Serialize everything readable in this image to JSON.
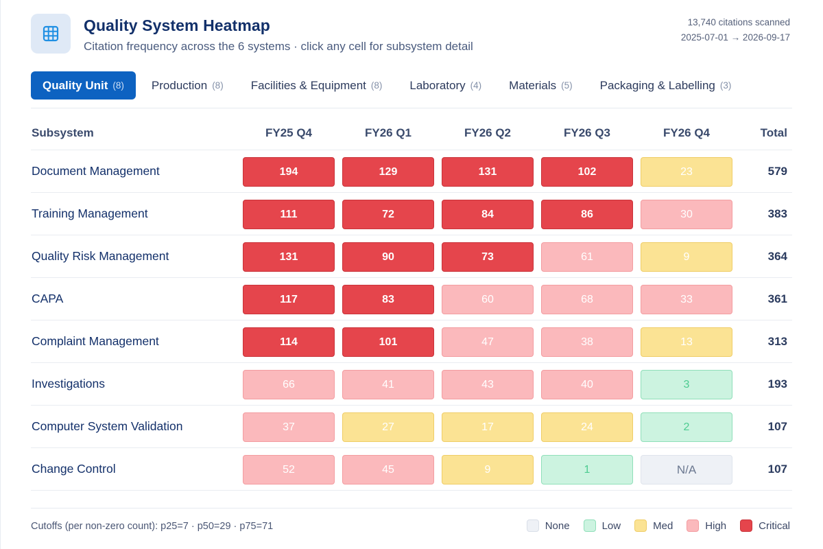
{
  "header": {
    "icon": "grid-icon",
    "title": "Quality System Heatmap",
    "subtitle": "Citation frequency across the 6 systems · click any cell for subsystem detail",
    "citations": "13,740 citations scanned",
    "date_range": "2025-07-01 → 2026-09-17"
  },
  "tabs": [
    {
      "label": "Quality Unit",
      "count": "(8)",
      "active": true
    },
    {
      "label": "Production",
      "count": "(8)",
      "active": false
    },
    {
      "label": "Facilities & Equipment",
      "count": "(8)",
      "active": false
    },
    {
      "label": "Laboratory",
      "count": "(4)",
      "active": false
    },
    {
      "label": "Materials",
      "count": "(5)",
      "active": false
    },
    {
      "label": "Packaging & Labelling",
      "count": "(3)",
      "active": false
    }
  ],
  "table": {
    "subsystem_header": "Subsystem",
    "columns": [
      "FY25 Q4",
      "FY26 Q1",
      "FY26 Q2",
      "FY26 Q3",
      "FY26 Q4"
    ],
    "total_header": "Total",
    "rows": [
      {
        "name": "Document Management",
        "cells": [
          {
            "v": "194",
            "lvl": "critical"
          },
          {
            "v": "129",
            "lvl": "critical"
          },
          {
            "v": "131",
            "lvl": "critical"
          },
          {
            "v": "102",
            "lvl": "critical"
          },
          {
            "v": "23",
            "lvl": "med"
          }
        ],
        "total": "579"
      },
      {
        "name": "Training Management",
        "cells": [
          {
            "v": "111",
            "lvl": "critical"
          },
          {
            "v": "72",
            "lvl": "critical"
          },
          {
            "v": "84",
            "lvl": "critical"
          },
          {
            "v": "86",
            "lvl": "critical"
          },
          {
            "v": "30",
            "lvl": "high"
          }
        ],
        "total": "383"
      },
      {
        "name": "Quality Risk Management",
        "cells": [
          {
            "v": "131",
            "lvl": "critical"
          },
          {
            "v": "90",
            "lvl": "critical"
          },
          {
            "v": "73",
            "lvl": "critical"
          },
          {
            "v": "61",
            "lvl": "high"
          },
          {
            "v": "9",
            "lvl": "med"
          }
        ],
        "total": "364"
      },
      {
        "name": "CAPA",
        "cells": [
          {
            "v": "117",
            "lvl": "critical"
          },
          {
            "v": "83",
            "lvl": "critical"
          },
          {
            "v": "60",
            "lvl": "high"
          },
          {
            "v": "68",
            "lvl": "high"
          },
          {
            "v": "33",
            "lvl": "high"
          }
        ],
        "total": "361"
      },
      {
        "name": "Complaint Management",
        "cells": [
          {
            "v": "114",
            "lvl": "critical"
          },
          {
            "v": "101",
            "lvl": "critical"
          },
          {
            "v": "47",
            "lvl": "high"
          },
          {
            "v": "38",
            "lvl": "high"
          },
          {
            "v": "13",
            "lvl": "med"
          }
        ],
        "total": "313"
      },
      {
        "name": "Investigations",
        "cells": [
          {
            "v": "66",
            "lvl": "high"
          },
          {
            "v": "41",
            "lvl": "high"
          },
          {
            "v": "43",
            "lvl": "high"
          },
          {
            "v": "40",
            "lvl": "high"
          },
          {
            "v": "3",
            "lvl": "low"
          }
        ],
        "total": "193"
      },
      {
        "name": "Computer System Validation",
        "cells": [
          {
            "v": "37",
            "lvl": "high"
          },
          {
            "v": "27",
            "lvl": "med"
          },
          {
            "v": "17",
            "lvl": "med"
          },
          {
            "v": "24",
            "lvl": "med"
          },
          {
            "v": "2",
            "lvl": "low"
          }
        ],
        "total": "107"
      },
      {
        "name": "Change Control",
        "cells": [
          {
            "v": "52",
            "lvl": "high"
          },
          {
            "v": "45",
            "lvl": "high"
          },
          {
            "v": "9",
            "lvl": "med"
          },
          {
            "v": "1",
            "lvl": "low"
          },
          {
            "v": "N/A",
            "lvl": "none"
          }
        ],
        "total": "107"
      }
    ]
  },
  "footer": {
    "cutoffs": "Cutoffs (per non-zero count): p25=7 · p50=29 · p75=71",
    "legend": [
      {
        "label": "None",
        "lvl": "none"
      },
      {
        "label": "Low",
        "lvl": "low"
      },
      {
        "label": "Med",
        "lvl": "med"
      },
      {
        "label": "High",
        "lvl": "high"
      },
      {
        "label": "Critical",
        "lvl": "critical"
      }
    ]
  },
  "colors": {
    "accent": "#0d62c1",
    "critical": "#e5454c",
    "high": "#fbb9bc",
    "med": "#fbe394",
    "low": "#ccf3e0",
    "none": "#eef1f6"
  }
}
